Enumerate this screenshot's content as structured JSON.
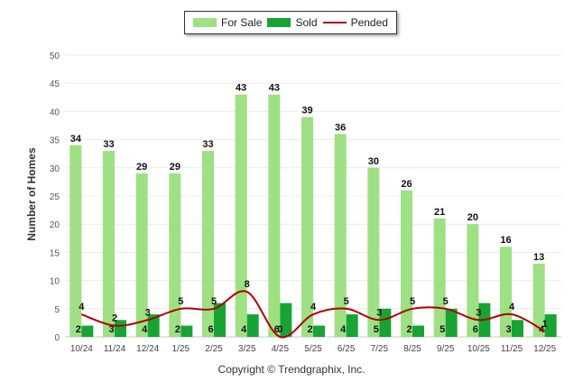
{
  "legend": {
    "for_sale": "For Sale",
    "sold": "Sold",
    "pended": "Pended"
  },
  "ylabel": "Number of Homes",
  "copyright": "Copyright © Trendgraphix, Inc.",
  "chart_data": {
    "type": "bar",
    "categories": [
      "10/24",
      "11/24",
      "12/24",
      "1/25",
      "2/25",
      "3/25",
      "4/25",
      "5/25",
      "6/25",
      "7/25",
      "8/25",
      "9/25",
      "10/25",
      "11/25",
      "12/25"
    ],
    "series": [
      {
        "name": "For Sale",
        "type": "bar",
        "color": "#9ee083",
        "values": [
          34,
          33,
          29,
          29,
          33,
          43,
          43,
          39,
          36,
          30,
          26,
          21,
          20,
          16,
          13
        ]
      },
      {
        "name": "Sold",
        "type": "bar",
        "color": "#18a435",
        "values": [
          2,
          3,
          4,
          2,
          6,
          4,
          6,
          2,
          4,
          5,
          2,
          5,
          6,
          3,
          4
        ]
      },
      {
        "name": "Pended",
        "type": "line",
        "color": "#b00000",
        "values": [
          4,
          2,
          3,
          5,
          5,
          8,
          0,
          4,
          5,
          3,
          5,
          5,
          3,
          4,
          1
        ]
      }
    ],
    "xlabel": "",
    "ylabel": "Number of Homes",
    "ylim": [
      0,
      50
    ],
    "yticks": [
      0,
      5,
      10,
      15,
      20,
      25,
      30,
      35,
      40,
      45,
      50
    ],
    "grid": true,
    "legend_position": "top-center"
  }
}
